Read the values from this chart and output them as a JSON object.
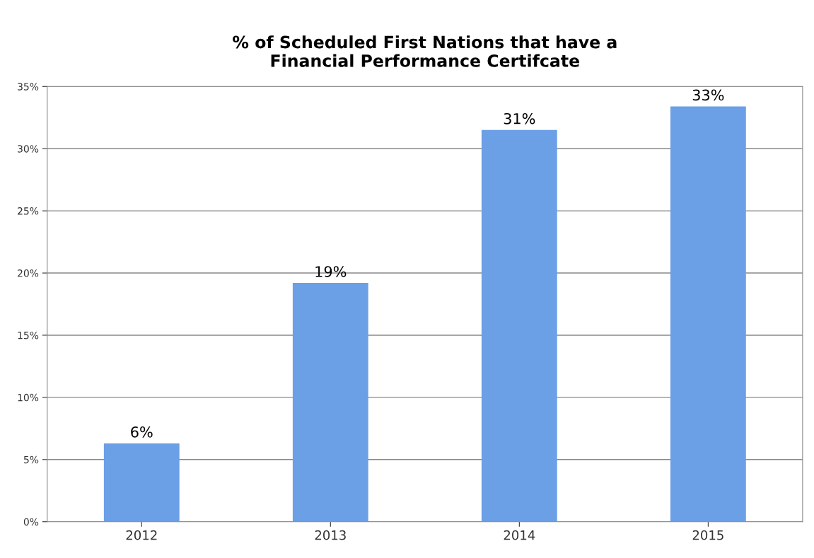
{
  "chart_data": {
    "type": "bar",
    "title": "% of Scheduled First Nations that have a\nFinancial Performance Certifcate",
    "categories": [
      "2012",
      "2013",
      "2014",
      "2015"
    ],
    "values": [
      6.3,
      19.2,
      31.5,
      33.4
    ],
    "value_labels": [
      "6%",
      "19%",
      "31%",
      "33%"
    ],
    "color": "#6b9fe6",
    "ylim": [
      0,
      35
    ],
    "yticks": [
      {
        "value": 0,
        "label": "0%"
      },
      {
        "value": 5,
        "label": "5%"
      },
      {
        "value": 10,
        "label": "10%"
      },
      {
        "value": 15,
        "label": "15%"
      },
      {
        "value": 20,
        "label": "20%"
      },
      {
        "value": 25,
        "label": "25%"
      },
      {
        "value": 30,
        "label": "30%"
      },
      {
        "value": 35,
        "label": "35%"
      }
    ],
    "grid": "y",
    "legend": false
  }
}
